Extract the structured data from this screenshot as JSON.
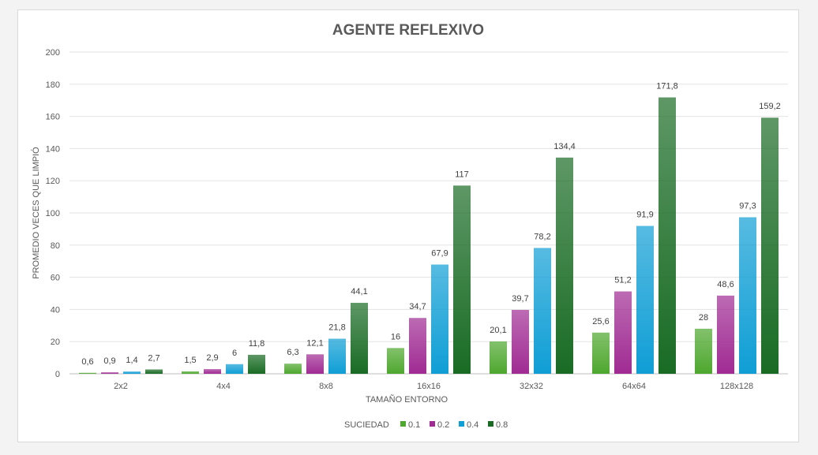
{
  "chart_data": {
    "type": "bar",
    "title": "AGENTE REFLEXIVO",
    "xlabel": "TAMAÑO ENTORNO",
    "ylabel": "PROMEDIO VECES QUE LIMPIÓ",
    "ylim": [
      0,
      200
    ],
    "yticks": [
      0,
      20,
      40,
      60,
      80,
      100,
      120,
      140,
      160,
      180,
      200
    ],
    "grid": true,
    "legend_title": "SUCIEDAD",
    "legend_position": "bottom",
    "categories": [
      "2x2",
      "4x4",
      "8x8",
      "16x16",
      "32x32",
      "64x64",
      "128x128"
    ],
    "series": [
      {
        "name": "0.1",
        "color": "#4ea72e",
        "values": [
          0.6,
          1.5,
          6.3,
          16,
          20.1,
          25.6,
          28
        ],
        "labels": [
          "0,6",
          "1,5",
          "6,3",
          "16",
          "20,1",
          "25,6",
          "28"
        ]
      },
      {
        "name": "0.2",
        "color": "#a02b93",
        "values": [
          0.9,
          2.9,
          12.1,
          34.7,
          39.7,
          51.2,
          48.6
        ],
        "labels": [
          "0,9",
          "2,9",
          "12,1",
          "34,7",
          "39,7",
          "51,2",
          "48,6"
        ]
      },
      {
        "name": "0.4",
        "color": "#0f9ed5",
        "values": [
          1.4,
          6,
          21.8,
          67.9,
          78.2,
          91.9,
          97.3
        ],
        "labels": [
          "1,4",
          "6",
          "21,8",
          "67,9",
          "78,2",
          "91,9",
          "97,3"
        ]
      },
      {
        "name": "0.8",
        "color": "#196b24",
        "values": [
          2.7,
          11.8,
          44.1,
          117,
          134.4,
          171.8,
          159.2
        ],
        "labels": [
          "2,7",
          "11,8",
          "44,1",
          "117",
          "134,4",
          "171,8",
          "159,2"
        ]
      }
    ]
  }
}
